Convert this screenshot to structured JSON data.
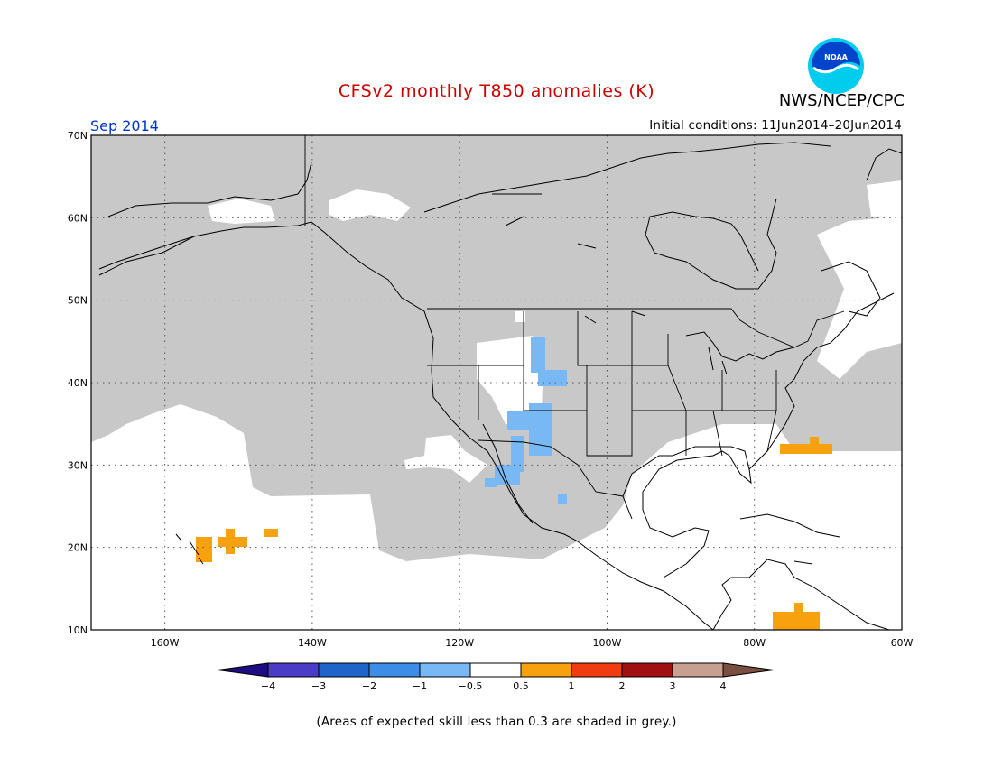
{
  "header": {
    "title": "CFSv2 monthly T850 anomalies (K)",
    "agency": "NWS/NCEP/CPC",
    "logo_text": "NOAA",
    "valid_month": "Sep 2014",
    "initial_conditions": "Initial conditions: 11Jun2014–20Jun2014"
  },
  "map": {
    "region": "North America and adjacent oceans",
    "lon_range": [
      -170,
      -60
    ],
    "lat_range": [
      10,
      70
    ],
    "lat_ticks": [
      "70N",
      "60N",
      "50N",
      "40N",
      "30N",
      "20N",
      "10N"
    ],
    "lon_ticks": [
      "160W",
      "140W",
      "120W",
      "100W",
      "80W",
      "60W"
    ],
    "grid": true,
    "grid_style": "dotted"
  },
  "colorbar": {
    "labels": [
      "−4",
      "−3",
      "−2",
      "−1",
      "−0.5",
      "0.5",
      "1",
      "2",
      "3",
      "4"
    ],
    "colors": [
      "#1e0d82",
      "#4a3cc4",
      "#1f64c8",
      "#3c8ce8",
      "#78b9f5",
      "#ffffff",
      "#f7a10f",
      "#f03c10",
      "#a01010",
      "#c7a08f",
      "#7a4f42"
    ]
  },
  "colors": {
    "title": "#cc0000",
    "valid_month": "#0033cc",
    "low_skill_grey": "#c8c8c8",
    "logo_outer": "#00ccee",
    "logo_inner": "#0044cc"
  },
  "footnote": "(Areas of expected skill less than 0.3 are shaded in grey.)"
}
